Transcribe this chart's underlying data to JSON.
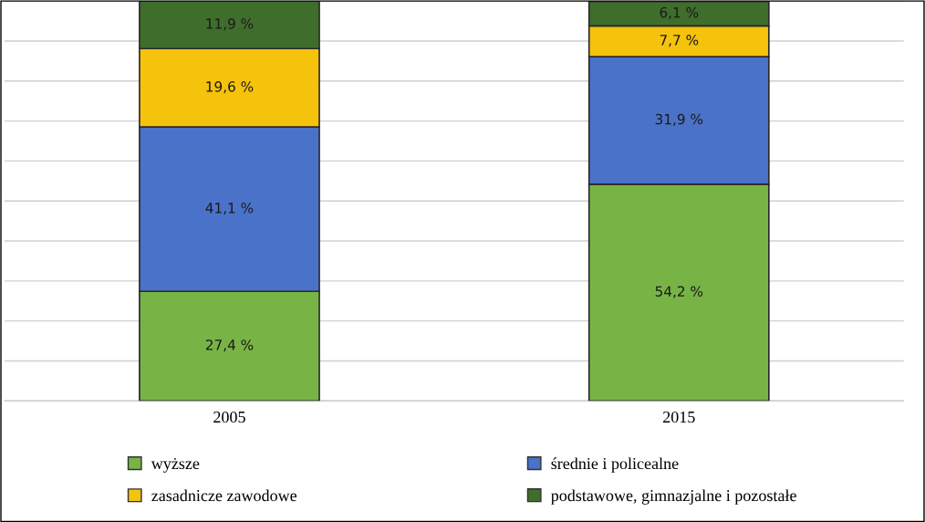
{
  "chart_data": {
    "type": "bar",
    "stacked": true,
    "categories": [
      "2005",
      "2015"
    ],
    "series": [
      {
        "name": "wyższe",
        "color": "#78b445",
        "values": [
          27.4,
          54.2
        ],
        "value_labels": [
          "27,4 %",
          "54,2 %"
        ]
      },
      {
        "name": "średnie i policealne",
        "color": "#4a72c8",
        "values": [
          41.1,
          31.9
        ],
        "value_labels": [
          "41,1 %",
          "31,9 %"
        ]
      },
      {
        "name": "zasadnicze zawodowe",
        "color": "#f5c20c",
        "values": [
          19.6,
          7.7
        ],
        "value_labels": [
          "19,6 %",
          "7,7 %"
        ]
      },
      {
        "name": "podstawowe, gimnazjalne i pozostałe",
        "color": "#3f6e2c",
        "values": [
          11.9,
          6.1
        ],
        "value_labels": [
          "11,9 %",
          "6,1 %"
        ]
      }
    ],
    "ylim": [
      0,
      100
    ],
    "yticks": [
      {
        "value": 0,
        "label": null
      },
      {
        "value": 10,
        "label": null
      },
      {
        "value": 20,
        "label": null
      },
      {
        "value": 30,
        "label": null
      },
      {
        "value": 40,
        "label": null
      },
      {
        "value": 50,
        "label": null
      },
      {
        "value": 60,
        "label": null
      },
      {
        "value": 70,
        "label": null
      },
      {
        "value": 80,
        "label": null
      },
      {
        "value": 90,
        "label": null
      },
      {
        "value": 100,
        "label": null
      }
    ],
    "tick_labels": "x",
    "grid": "y",
    "legend": "bottom"
  }
}
